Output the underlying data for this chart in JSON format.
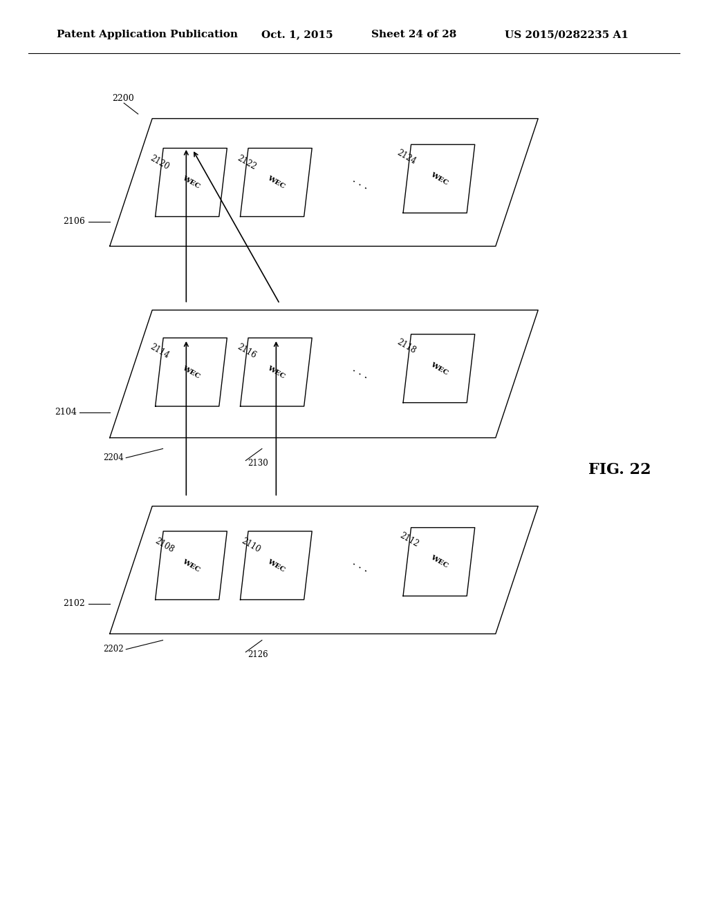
{
  "title_left": "Patent Application Publication",
  "title_date": "Oct. 1, 2015",
  "title_sheet": "Sheet 24 of 28",
  "title_patent": "US 2015/0282235 A1",
  "fig_label": "FIG. 22",
  "bg_color": "#ffffff",
  "line_color": "#000000",
  "header_fontsize": 11,
  "fig_fontsize": 16,
  "label_fontsize": 9
}
